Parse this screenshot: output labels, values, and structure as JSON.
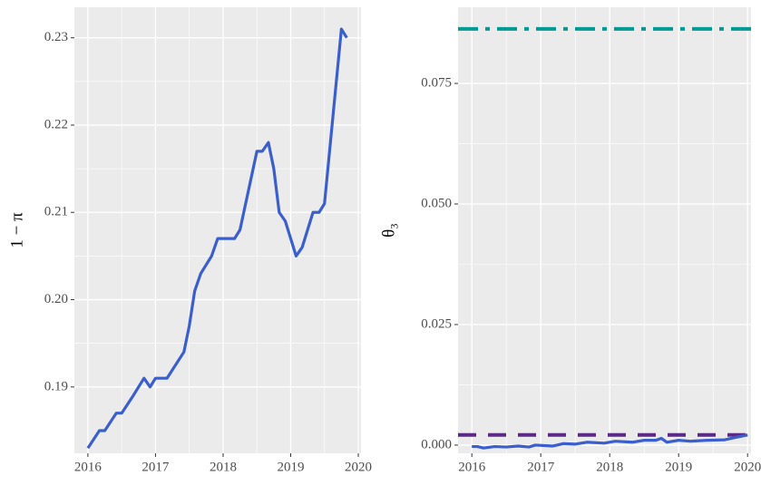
{
  "chart_data": [
    {
      "type": "line",
      "ylabel": "1 − π",
      "x": [
        2016.0,
        2016.17,
        2016.25,
        2016.42,
        2016.5,
        2016.67,
        2016.83,
        2016.92,
        2017.0,
        2017.17,
        2017.42,
        2017.5,
        2017.58,
        2017.67,
        2017.83,
        2017.92,
        2018.17,
        2018.25,
        2018.5,
        2018.58,
        2018.67,
        2018.75,
        2018.83,
        2018.92,
        2019.08,
        2019.17,
        2019.33,
        2019.42,
        2019.5,
        2019.75,
        2019.83
      ],
      "series": [
        {
          "color": "#3a5fcd",
          "values": [
            0.183,
            0.185,
            0.185,
            0.187,
            0.187,
            0.189,
            0.191,
            0.19,
            0.191,
            0.191,
            0.194,
            0.197,
            0.201,
            0.203,
            0.205,
            0.207,
            0.207,
            0.208,
            0.217,
            0.217,
            0.218,
            0.215,
            0.21,
            0.209,
            0.205,
            0.206,
            0.21,
            0.21,
            0.211,
            0.231,
            0.23
          ]
        }
      ],
      "xlim": [
        2015.8,
        2020.04
      ],
      "xticks": [
        2016,
        2017,
        2018,
        2019,
        2020
      ],
      "ylim": [
        0.1824,
        0.2335
      ],
      "yticks": [
        {
          "value": 0.19,
          "label": "0.19"
        },
        {
          "value": 0.2,
          "label": "0.20"
        },
        {
          "value": 0.21,
          "label": "0.21"
        },
        {
          "value": 0.22,
          "label": "0.22"
        },
        {
          "value": 0.23,
          "label": "0.23"
        }
      ],
      "grid": true
    },
    {
      "type": "line",
      "ylabel": "θ₃",
      "x": [
        2016.0,
        2016.08,
        2016.17,
        2016.33,
        2016.5,
        2016.67,
        2016.83,
        2016.92,
        2017.17,
        2017.33,
        2017.5,
        2017.67,
        2017.92,
        2018.08,
        2018.33,
        2018.5,
        2018.67,
        2018.75,
        2018.83,
        2019.0,
        2019.17,
        2019.42,
        2019.67,
        2019.83,
        2020.0
      ],
      "series": [
        {
          "color": "#3a5fcd",
          "values": [
            -0.0003,
            -0.0003,
            -0.0006,
            -0.0003,
            -0.0004,
            -0.0002,
            -0.0004,
            0.0,
            -0.0002,
            0.0003,
            0.0002,
            0.0006,
            0.0004,
            0.0008,
            0.0006,
            0.001,
            0.001,
            0.0014,
            0.0006,
            0.001,
            0.0008,
            0.001,
            0.0011,
            0.0016,
            0.0021
          ]
        }
      ],
      "hlines": [
        {
          "value": 0.0863,
          "color": "#009a94",
          "dash": "dashdot"
        },
        {
          "value": 0.0021,
          "color": "#5b2a86",
          "dash": "dashed"
        }
      ],
      "xlim": [
        2015.8,
        2020.05
      ],
      "xticks": [
        2016,
        2017,
        2018,
        2019,
        2020
      ],
      "ylim": [
        -0.0017,
        0.0908
      ],
      "yticks": [
        {
          "value": 0,
          "label": "0.000"
        },
        {
          "value": 0.025,
          "label": "0.025"
        },
        {
          "value": 0.05,
          "label": "0.050"
        },
        {
          "value": 0.075,
          "label": "0.075"
        }
      ],
      "grid": true
    }
  ]
}
